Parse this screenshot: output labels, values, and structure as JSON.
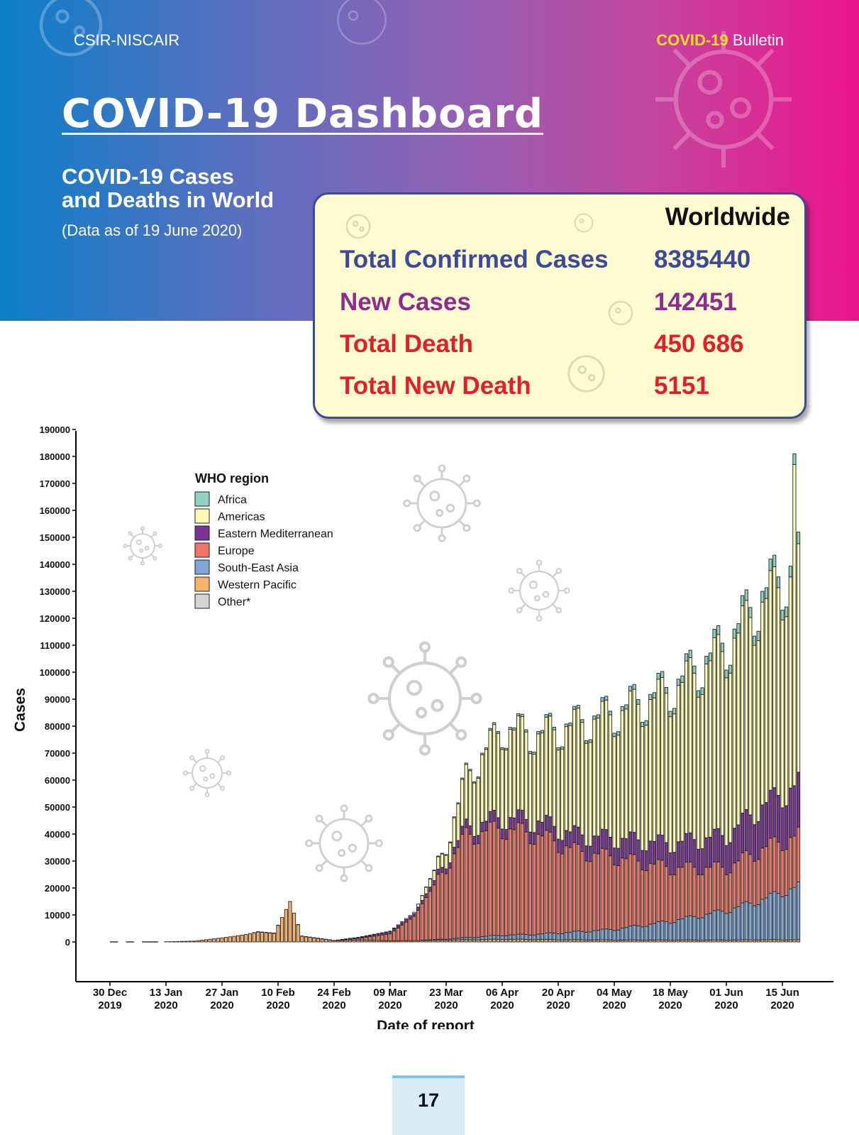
{
  "header": {
    "org": "CSIR-NISCAIR",
    "bulletin_highlight": "COVID-19",
    "bulletin_text": "Bulletin",
    "title": "COVID-19 Dashboard",
    "subtitle_line1": "COVID-19 Cases",
    "subtitle_line2": "and Deaths in World",
    "data_note": "(Data as of 19 June 2020)"
  },
  "stats": {
    "heading": "Worldwide",
    "rows": [
      {
        "label": "Total Confirmed Cases",
        "value": "8385440",
        "color": "#3b4a99"
      },
      {
        "label": "New Cases",
        "value": "142451",
        "color": "#8d2b8f"
      },
      {
        "label": "Total Death",
        "value": "450 686",
        "color": "#e11f26"
      },
      {
        "label": "Total New Death",
        "value": "5151",
        "color": "#e11f26"
      }
    ]
  },
  "chart_data": {
    "type": "bar",
    "stacked": true,
    "title": "",
    "xlabel": "Date of report",
    "ylabel": "Cases",
    "ylim": [
      0,
      190000
    ],
    "yticks": [
      0,
      10000,
      20000,
      30000,
      40000,
      50000,
      60000,
      70000,
      80000,
      90000,
      100000,
      110000,
      120000,
      130000,
      140000,
      150000,
      160000,
      170000,
      180000,
      190000
    ],
    "xtick_labels": [
      {
        "line1": "30 Dec",
        "line2": "2019",
        "date": "2019-12-30"
      },
      {
        "line1": "13 Jan",
        "line2": "2020",
        "date": "2020-01-13"
      },
      {
        "line1": "27 Jan",
        "line2": "2020",
        "date": "2020-01-27"
      },
      {
        "line1": "10 Feb",
        "line2": "2020",
        "date": "2020-02-10"
      },
      {
        "line1": "24 Feb",
        "line2": "2020",
        "date": "2020-02-24"
      },
      {
        "line1": "09 Mar",
        "line2": "2020",
        "date": "2020-03-09"
      },
      {
        "line1": "23 Mar",
        "line2": "2020",
        "date": "2020-03-23"
      },
      {
        "line1": "06 Apr",
        "line2": "2020",
        "date": "2020-04-06"
      },
      {
        "line1": "20 Apr",
        "line2": "2020",
        "date": "2020-04-20"
      },
      {
        "line1": "04 May",
        "line2": "2020",
        "date": "2020-05-04"
      },
      {
        "line1": "18 May",
        "line2": "2020",
        "date": "2020-05-18"
      },
      {
        "line1": "01 Jun",
        "line2": "2020",
        "date": "2020-06-01"
      },
      {
        "line1": "15 Jun",
        "line2": "2020",
        "date": "2020-06-15"
      }
    ],
    "legend_title": "WHO region",
    "legend_position": "top-left",
    "grid": false,
    "series": [
      {
        "name": "Africa",
        "color": "#8fd1c3"
      },
      {
        "name": "Americas",
        "color": "#fbfab7"
      },
      {
        "name": "Eastern Mediterranean",
        "color": "#7b3394"
      },
      {
        "name": "Europe",
        "color": "#ee7666"
      },
      {
        "name": "South-East Asia",
        "color": "#7fa8d4"
      },
      {
        "name": "Western Pacific",
        "color": "#f8b36a"
      },
      {
        "name": "Other*",
        "color": "#d4d4d4"
      }
    ],
    "date_range": [
      "2020-01-11",
      "2020-06-19"
    ],
    "keypoints": [
      {
        "date": "2020-01-11",
        "total": 0,
        "WP": 0
      },
      {
        "date": "2020-01-20",
        "total": 300,
        "WP": 300
      },
      {
        "date": "2020-01-27",
        "total": 1500,
        "WP": 1500
      },
      {
        "date": "2020-02-01",
        "total": 2500,
        "WP": 2500
      },
      {
        "date": "2020-02-05",
        "total": 3800,
        "WP": 3700
      },
      {
        "date": "2020-02-09",
        "total": 3300,
        "WP": 3200
      },
      {
        "date": "2020-02-13",
        "total": 15000,
        "WP": 15000
      },
      {
        "date": "2020-02-16",
        "total": 2200,
        "WP": 2100
      },
      {
        "date": "2020-02-24",
        "total": 600,
        "WP": 500
      },
      {
        "date": "2020-03-01",
        "total": 1700,
        "WP": 700,
        "Eur": 600,
        "EM": 300
      },
      {
        "date": "2020-03-09",
        "total": 4000,
        "WP": 400,
        "Eur": 2600,
        "EM": 800,
        "Am": 200
      },
      {
        "date": "2020-03-15",
        "total": 11000,
        "WP": 500,
        "Eur": 9000,
        "EM": 1000,
        "Am": 500
      },
      {
        "date": "2020-03-23",
        "total": 36000,
        "WP": 700,
        "Eur": 27000,
        "EM": 2000,
        "Am": 5000,
        "SEA": 400,
        "Af": 300
      },
      {
        "date": "2020-03-28",
        "total": 62000,
        "WP": 800,
        "Eur": 38000,
        "EM": 3000,
        "Am": 18000,
        "SEA": 800,
        "Af": 500
      },
      {
        "date": "2020-04-06",
        "total": 80000,
        "WP": 1000,
        "Eur": 40000,
        "EM": 4000,
        "Am": 33000,
        "SEA": 1500,
        "Af": 700
      },
      {
        "date": "2020-04-15",
        "total": 78000,
        "WP": 900,
        "Eur": 37000,
        "EM": 5000,
        "Am": 33000,
        "SEA": 2000,
        "Af": 900
      },
      {
        "date": "2020-04-25",
        "total": 82000,
        "WP": 800,
        "Eur": 30000,
        "EM": 6000,
        "Am": 41000,
        "SEA": 3000,
        "Af": 1000
      },
      {
        "date": "2020-05-04",
        "total": 86000,
        "WP": 700,
        "Eur": 27000,
        "EM": 7000,
        "Am": 46000,
        "SEA": 4000,
        "Af": 1400
      },
      {
        "date": "2020-05-18",
        "total": 95000,
        "WP": 700,
        "Eur": 20000,
        "EM": 9000,
        "Am": 55000,
        "SEA": 7000,
        "Af": 2200
      },
      {
        "date": "2020-06-01",
        "total": 112000,
        "WP": 700,
        "Eur": 16000,
        "EM": 12000,
        "Am": 66000,
        "SEA": 11000,
        "Af": 3200
      },
      {
        "date": "2020-06-10",
        "total": 130000,
        "WP": 800,
        "Eur": 19000,
        "EM": 16000,
        "Am": 72000,
        "SEA": 15000,
        "Af": 4000
      },
      {
        "date": "2020-06-19",
        "total": 142000,
        "WP": 800,
        "Eur": 19000,
        "EM": 19000,
        "Am": 77000,
        "SEA": 20000,
        "Af": 4000
      }
    ],
    "peak_bar": {
      "date": "2020-06-18",
      "total": 181000
    }
  },
  "page": {
    "number": "17"
  }
}
